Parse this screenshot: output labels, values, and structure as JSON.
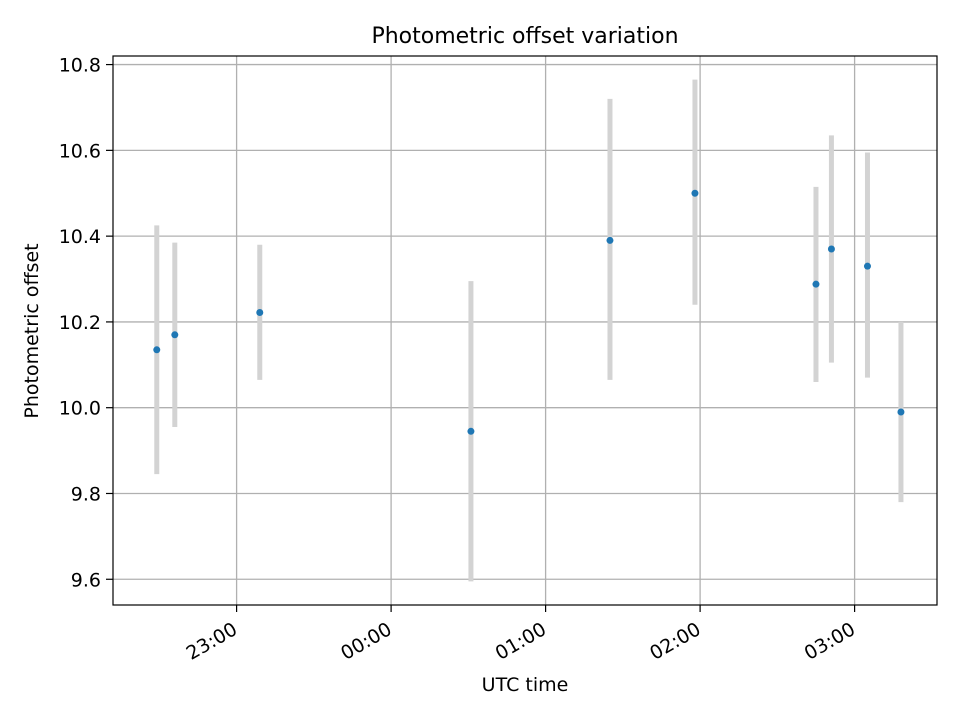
{
  "chart_data": {
    "type": "scatter",
    "title": "Photometric offset variation",
    "xlabel": "UTC time",
    "ylabel": "Photometric offset",
    "x_axis": "time",
    "x_tick_labels": [
      "23:00",
      "00:00",
      "01:00",
      "02:00",
      "03:00"
    ],
    "y_tick_labels": [
      "9.6",
      "9.8",
      "10.0",
      "10.2",
      "10.4",
      "10.6",
      "10.8"
    ],
    "xlim": [
      "22:12",
      "03:32"
    ],
    "ylim": [
      9.54,
      10.82
    ],
    "grid": true,
    "legend": "none",
    "points": [
      {
        "x": "22:29",
        "y": 10.135,
        "err_low": 9.845,
        "err_high": 10.425
      },
      {
        "x": "22:36",
        "y": 10.17,
        "err_low": 9.955,
        "err_high": 10.385
      },
      {
        "x": "23:09",
        "y": 10.222,
        "err_low": 10.065,
        "err_high": 10.38
      },
      {
        "x": "00:31",
        "y": 9.945,
        "err_low": 9.595,
        "err_high": 10.295
      },
      {
        "x": "01:25",
        "y": 10.39,
        "err_low": 10.065,
        "err_high": 10.72
      },
      {
        "x": "01:58",
        "y": 10.5,
        "err_low": 10.24,
        "err_high": 10.765
      },
      {
        "x": "02:45",
        "y": 10.288,
        "err_low": 10.06,
        "err_high": 10.515
      },
      {
        "x": "02:51",
        "y": 10.37,
        "err_low": 10.105,
        "err_high": 10.635
      },
      {
        "x": "03:05",
        "y": 10.33,
        "err_low": 10.07,
        "err_high": 10.595
      },
      {
        "x": "03:18",
        "y": 9.99,
        "err_low": 9.78,
        "err_high": 10.2
      }
    ]
  },
  "colors": {
    "marker": "#1f77b4",
    "errorbar": "#d3d3d3",
    "grid": "#b0b0b0",
    "axes": "#000000",
    "background": "#ffffff"
  }
}
